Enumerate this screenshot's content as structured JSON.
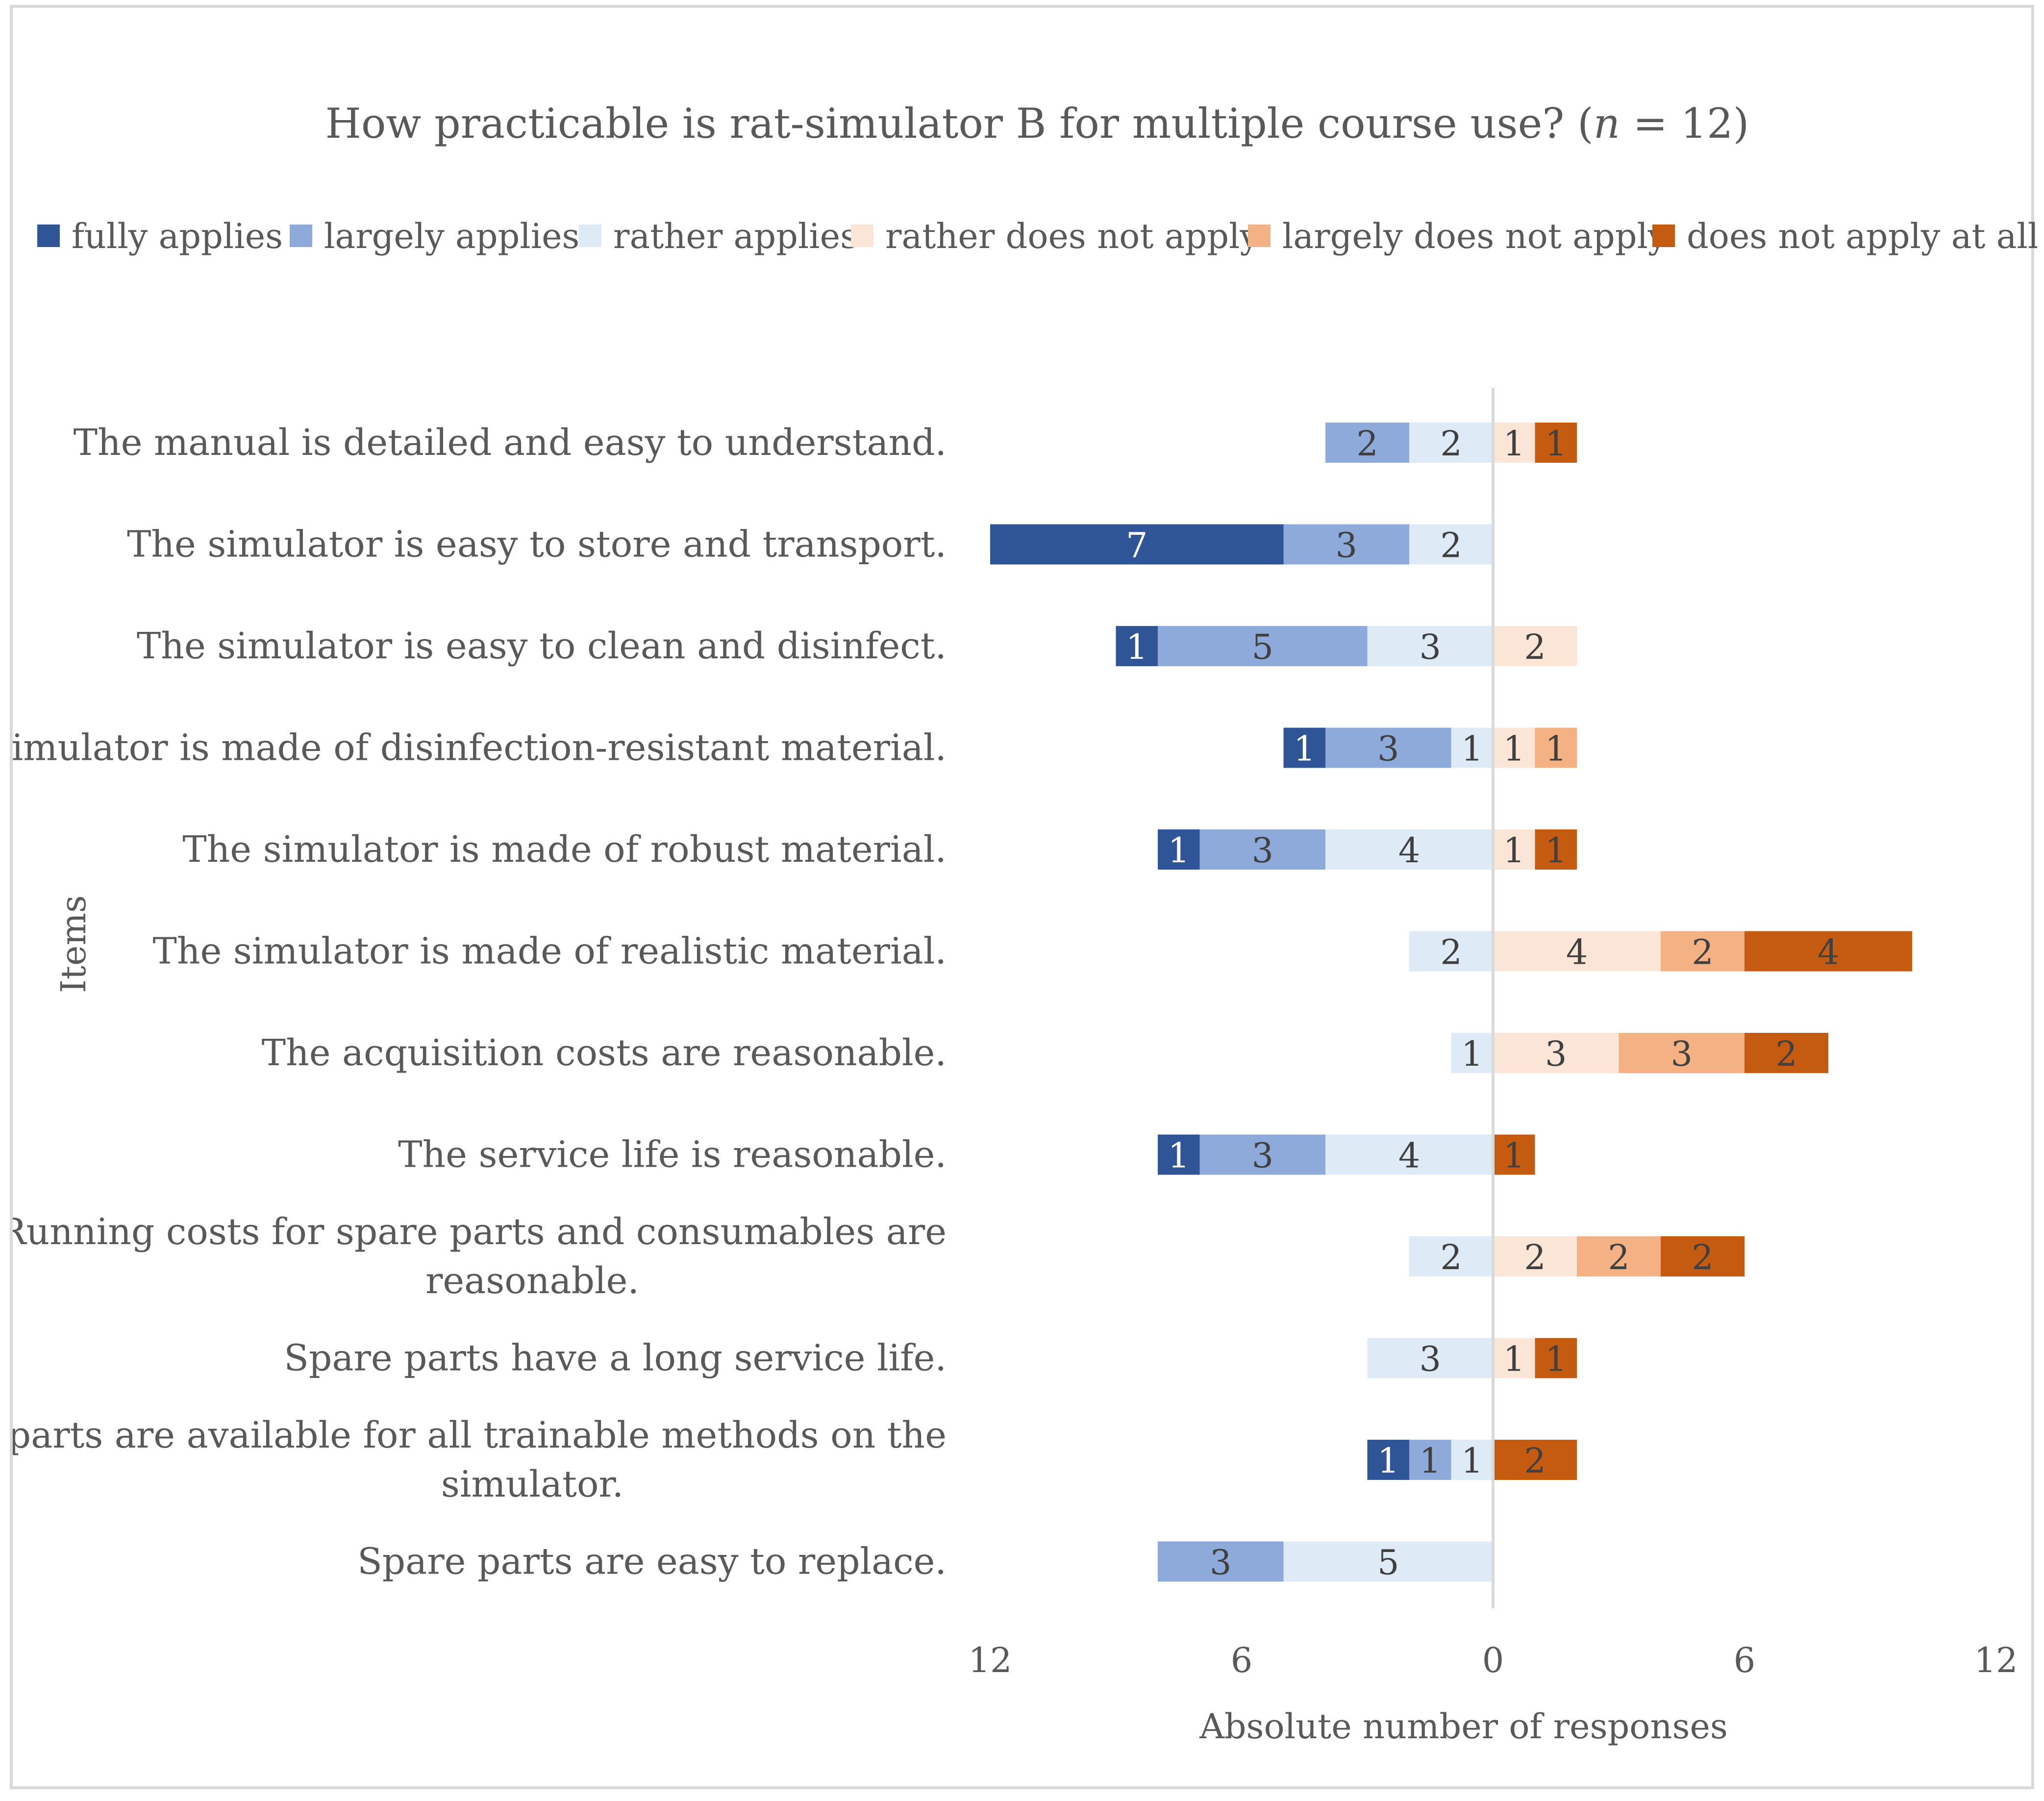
{
  "chart_data": {
    "type": "bar",
    "orientation": "horizontal",
    "stacking": "diverging",
    "title_main": "How practicable is rat-simulator B for multiple course use? (",
    "title_n": "n",
    "title_tail": " = 12)",
    "xlabel": "Absolute number of responses",
    "ylabel": "Items",
    "x_ticks": [
      "12",
      "6",
      "0",
      "6",
      "12"
    ],
    "xlim": [
      -12,
      12
    ],
    "legend_position": "top",
    "series": [
      {
        "name": "fully applies",
        "side": "left",
        "color": "#2f5597"
      },
      {
        "name": "largely applies",
        "side": "left",
        "color": "#8eaadb"
      },
      {
        "name": "rather applies",
        "side": "left",
        "color": "#deebf7"
      },
      {
        "name": "rather does not apply",
        "side": "right",
        "color": "#fbe5d6"
      },
      {
        "name": "largely does not apply",
        "side": "right",
        "color": "#f4b183"
      },
      {
        "name": "does not apply at all",
        "side": "right",
        "color": "#c55a11"
      }
    ],
    "items": [
      {
        "label": [
          "The manual is detailed and easy to understand."
        ],
        "values": [
          0,
          2,
          2,
          1,
          0,
          1
        ]
      },
      {
        "label": [
          "The simulator is easy to store and transport."
        ],
        "values": [
          7,
          3,
          2,
          0,
          0,
          0
        ]
      },
      {
        "label": [
          "The simulator is easy to clean and disinfect."
        ],
        "values": [
          1,
          5,
          3,
          2,
          0,
          0
        ]
      },
      {
        "label": [
          "The simulator is made of disinfection-resistant material."
        ],
        "values": [
          1,
          3,
          1,
          1,
          1,
          0
        ]
      },
      {
        "label": [
          "The simulator is made of robust material."
        ],
        "values": [
          1,
          3,
          4,
          1,
          0,
          1
        ]
      },
      {
        "label": [
          "The simulator is made of realistic material."
        ],
        "values": [
          0,
          0,
          2,
          4,
          2,
          4
        ]
      },
      {
        "label": [
          "The acquisition costs are reasonable."
        ],
        "values": [
          0,
          0,
          1,
          3,
          3,
          2
        ]
      },
      {
        "label": [
          "The service life is reasonable."
        ],
        "values": [
          1,
          3,
          4,
          0,
          0,
          1
        ]
      },
      {
        "label": [
          "Running costs for spare parts and consumables are",
          "reasonable."
        ],
        "values": [
          0,
          0,
          2,
          2,
          2,
          2
        ]
      },
      {
        "label": [
          "Spare parts have a long service life."
        ],
        "values": [
          0,
          0,
          3,
          1,
          0,
          1
        ]
      },
      {
        "label": [
          "Spare parts are available for all trainable methods on the",
          "simulator."
        ],
        "values": [
          1,
          1,
          1,
          0,
          0,
          2
        ]
      },
      {
        "label": [
          "Spare parts are easy to replace."
        ],
        "values": [
          0,
          3,
          5,
          0,
          0,
          0
        ]
      }
    ]
  }
}
